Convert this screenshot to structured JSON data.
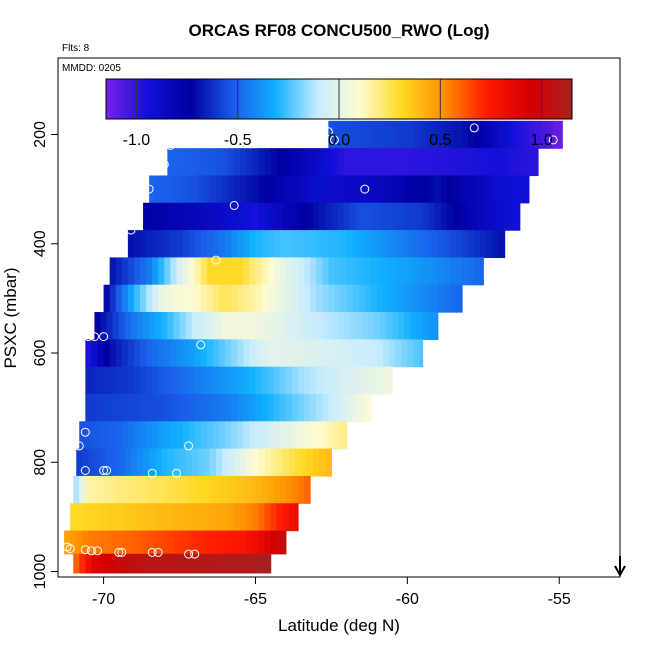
{
  "chart_data": {
    "type": "heatmap",
    "title": "ORCAS RF08 CONCU500_RWO (Log)",
    "flights_label": "Flts: 8",
    "date_label": "MMDD: 0205",
    "xlabel": "Latitude (deg N)",
    "ylabel": "PSXC (mbar)",
    "xlim": [
      -71.5,
      -53.0
    ],
    "ylim": [
      1010,
      60
    ],
    "x_ticks": [
      -70,
      -65,
      -60,
      -55
    ],
    "x_tick_labels": [
      "-70",
      "-65",
      "-60",
      "-55"
    ],
    "y_ticks": [
      200,
      400,
      600,
      800,
      1000
    ],
    "y_tick_labels": [
      "200",
      "400",
      "600",
      "800",
      "1000"
    ],
    "colorbar": {
      "range": [
        -1.15,
        1.15
      ],
      "ticks": [
        -1.0,
        -0.5,
        0.0,
        0.5,
        1.0
      ],
      "tick_labels": [
        "-1.0",
        "-0.5",
        "0.0",
        "0.5",
        "1.0"
      ],
      "colors": [
        "#7a20e8",
        "#1010d8",
        "#0000a0",
        "#1a5ce8",
        "#10b0ff",
        "#c8ecff",
        "#fffbd0",
        "#ffd820",
        "#ff8c00",
        "#ff1800",
        "#d40000",
        "#a82020"
      ]
    },
    "arrow_marker": {
      "x": -53.0,
      "direction": "down"
    },
    "rows": [
      {
        "p_center": 200,
        "x_start": -62.6,
        "x_end": -54.9,
        "stops": [
          [
            -62.6,
            -0.55
          ],
          [
            -60.0,
            -0.6
          ],
          [
            -58.0,
            -0.7
          ],
          [
            -56.5,
            -0.95
          ],
          [
            -55.5,
            -1.05
          ],
          [
            -54.9,
            -1.12
          ]
        ]
      },
      {
        "p_center": 250,
        "x_start": -67.9,
        "x_end": -55.7,
        "stops": [
          [
            -67.9,
            -0.5
          ],
          [
            -66.0,
            -0.55
          ],
          [
            -64.0,
            -0.75
          ],
          [
            -62.0,
            -1.0
          ],
          [
            -60.0,
            -1.0
          ],
          [
            -57.0,
            -0.95
          ],
          [
            -55.7,
            -1.0
          ]
        ]
      },
      {
        "p_center": 300,
        "x_start": -68.5,
        "x_end": -56.0,
        "stops": [
          [
            -68.5,
            -0.5
          ],
          [
            -67.0,
            -0.55
          ],
          [
            -65.0,
            -0.7
          ],
          [
            -63.0,
            -0.9
          ],
          [
            -61.0,
            -0.85
          ],
          [
            -59.0,
            -0.7
          ],
          [
            -57.0,
            -0.9
          ],
          [
            -56.0,
            -0.95
          ]
        ]
      },
      {
        "p_center": 350,
        "x_start": -68.7,
        "x_end": -56.3,
        "stops": [
          [
            -68.7,
            -0.75
          ],
          [
            -66.5,
            -0.85
          ],
          [
            -65.0,
            -0.95
          ],
          [
            -63.5,
            -0.75
          ],
          [
            -61.5,
            -0.55
          ],
          [
            -59.5,
            -0.6
          ],
          [
            -57.5,
            -0.85
          ],
          [
            -56.3,
            -0.95
          ]
        ]
      },
      {
        "p_center": 400,
        "x_start": -69.2,
        "x_end": -56.8,
        "stops": [
          [
            -69.2,
            -0.7
          ],
          [
            -67.5,
            -0.6
          ],
          [
            -66.0,
            -0.45
          ],
          [
            -65.0,
            -0.3
          ],
          [
            -64.0,
            -0.25
          ],
          [
            -62.0,
            -0.3
          ],
          [
            -60.0,
            -0.45
          ],
          [
            -58.0,
            -0.6
          ],
          [
            -56.8,
            -0.7
          ]
        ]
      },
      {
        "p_center": 450,
        "x_start": -69.8,
        "x_end": -57.5,
        "stops": [
          [
            -69.8,
            -0.7
          ],
          [
            -68.5,
            -0.45
          ],
          [
            -67.5,
            -0.05
          ],
          [
            -66.5,
            0.3
          ],
          [
            -65.5,
            0.3
          ],
          [
            -64.0,
            0.0
          ],
          [
            -62.5,
            -0.25
          ],
          [
            -60.0,
            -0.35
          ],
          [
            -57.5,
            -0.5
          ]
        ]
      },
      {
        "p_center": 500,
        "x_start": -70.0,
        "x_end": -58.2,
        "stops": [
          [
            -70.0,
            -0.75
          ],
          [
            -69.0,
            -0.3
          ],
          [
            -68.0,
            0.05
          ],
          [
            -67.0,
            0.1
          ],
          [
            -66.0,
            0.25
          ],
          [
            -65.0,
            0.15
          ],
          [
            -63.0,
            -0.15
          ],
          [
            -61.0,
            -0.3
          ],
          [
            -58.2,
            -0.5
          ]
        ]
      },
      {
        "p_center": 550,
        "x_start": -70.3,
        "x_end": -59.0,
        "stops": [
          [
            -70.3,
            -0.75
          ],
          [
            -69.0,
            -0.45
          ],
          [
            -68.0,
            -0.3
          ],
          [
            -67.0,
            -0.1
          ],
          [
            -66.0,
            0.05
          ],
          [
            -65.0,
            0.05
          ],
          [
            -63.0,
            -0.1
          ],
          [
            -61.0,
            -0.2
          ],
          [
            -59.0,
            -0.4
          ]
        ]
      },
      {
        "p_center": 600,
        "x_start": -70.6,
        "x_end": -59.5,
        "stops": [
          [
            -70.6,
            -1.0
          ],
          [
            -69.8,
            -0.7
          ],
          [
            -68.5,
            -0.5
          ],
          [
            -67.0,
            -0.35
          ],
          [
            -65.5,
            -0.15
          ],
          [
            -64.5,
            0.0
          ],
          [
            -62.5,
            -0.05
          ],
          [
            -61.0,
            -0.1
          ],
          [
            -59.5,
            -0.25
          ]
        ]
      },
      {
        "p_center": 650,
        "x_start": -70.6,
        "x_end": -60.5,
        "stops": [
          [
            -70.6,
            -0.65
          ],
          [
            -69.0,
            -0.6
          ],
          [
            -67.0,
            -0.45
          ],
          [
            -65.0,
            -0.3
          ],
          [
            -63.5,
            -0.15
          ],
          [
            -62.0,
            -0.05
          ],
          [
            -60.5,
            0.05
          ]
        ]
      },
      {
        "p_center": 700,
        "x_start": -70.6,
        "x_end": -61.2,
        "stops": [
          [
            -70.6,
            -0.6
          ],
          [
            -68.0,
            -0.55
          ],
          [
            -66.0,
            -0.45
          ],
          [
            -64.0,
            -0.25
          ],
          [
            -62.5,
            -0.1
          ],
          [
            -61.2,
            0.1
          ]
        ]
      },
      {
        "p_center": 750,
        "x_start": -70.8,
        "x_end": -62.0,
        "stops": [
          [
            -70.8,
            -0.55
          ],
          [
            -69.5,
            -0.5
          ],
          [
            -68.0,
            -0.35
          ],
          [
            -66.0,
            -0.2
          ],
          [
            -64.0,
            0.0
          ],
          [
            -62.0,
            0.2
          ]
        ]
      },
      {
        "p_center": 800,
        "x_start": -70.9,
        "x_end": -62.5,
        "stops": [
          [
            -70.9,
            -0.6
          ],
          [
            -69.5,
            -0.5
          ],
          [
            -68.0,
            -0.3
          ],
          [
            -66.5,
            -0.2
          ],
          [
            -65.0,
            0.1
          ],
          [
            -63.5,
            0.3
          ],
          [
            -62.5,
            0.4
          ]
        ]
      },
      {
        "p_center": 850,
        "x_start": -71.0,
        "x_end": -63.2,
        "stops": [
          [
            -71.0,
            -0.2
          ],
          [
            -70.5,
            0.15
          ],
          [
            -69.5,
            0.2
          ],
          [
            -68.0,
            0.25
          ],
          [
            -66.0,
            0.35
          ],
          [
            -65.0,
            0.4
          ],
          [
            -64.0,
            0.5
          ],
          [
            -63.2,
            0.6
          ]
        ]
      },
      {
        "p_center": 900,
        "x_start": -71.1,
        "x_end": -63.6,
        "stops": [
          [
            -71.1,
            0.3
          ],
          [
            -69.5,
            0.35
          ],
          [
            -68.0,
            0.4
          ],
          [
            -66.0,
            0.45
          ],
          [
            -65.0,
            0.55
          ],
          [
            -64.3,
            0.7
          ],
          [
            -63.6,
            0.85
          ]
        ]
      },
      {
        "p_center": 950,
        "x_start": -71.3,
        "x_end": -64.0,
        "stops": [
          [
            -71.3,
            0.45
          ],
          [
            -70.5,
            0.55
          ],
          [
            -69.0,
            0.6
          ],
          [
            -67.0,
            0.7
          ],
          [
            -65.5,
            0.75
          ],
          [
            -64.8,
            0.85
          ],
          [
            -64.0,
            1.05
          ]
        ]
      },
      {
        "p_center": 985,
        "x_start": -71.0,
        "x_end": -64.5,
        "stops": [
          [
            -71.0,
            0.55
          ],
          [
            -70.3,
            0.9
          ],
          [
            -69.0,
            1.05
          ],
          [
            -67.0,
            1.1
          ],
          [
            -65.5,
            1.12
          ],
          [
            -64.5,
            1.15
          ]
        ]
      }
    ],
    "flight_points": [
      [
        -62.6,
        195
      ],
      [
        -62.4,
        210
      ],
      [
        -57.8,
        188
      ],
      [
        -55.2,
        210
      ],
      [
        -67.8,
        220
      ],
      [
        -68.0,
        255
      ],
      [
        -68.5,
        300
      ],
      [
        -61.4,
        300
      ],
      [
        -65.7,
        330
      ],
      [
        -69.1,
        375
      ],
      [
        -66.3,
        430
      ],
      [
        -70.3,
        570
      ],
      [
        -70.5,
        570
      ],
      [
        -70.0,
        570
      ],
      [
        -66.8,
        585
      ],
      [
        -70.6,
        745
      ],
      [
        -70.8,
        770
      ],
      [
        -67.2,
        770
      ],
      [
        -60.4,
        760
      ],
      [
        -70.6,
        815
      ],
      [
        -70.0,
        815
      ],
      [
        -69.9,
        815
      ],
      [
        -68.4,
        820
      ],
      [
        -67.6,
        820
      ],
      [
        -71.2,
        955
      ],
      [
        -71.1,
        958
      ],
      [
        -70.6,
        960
      ],
      [
        -70.4,
        962
      ],
      [
        -70.2,
        962
      ],
      [
        -69.5,
        965
      ],
      [
        -69.4,
        965
      ],
      [
        -68.4,
        965
      ],
      [
        -68.2,
        965
      ],
      [
        -67.2,
        968
      ],
      [
        -67.0,
        968
      ],
      [
        -64.0,
        980
      ],
      [
        -63.8,
        980
      ]
    ]
  }
}
